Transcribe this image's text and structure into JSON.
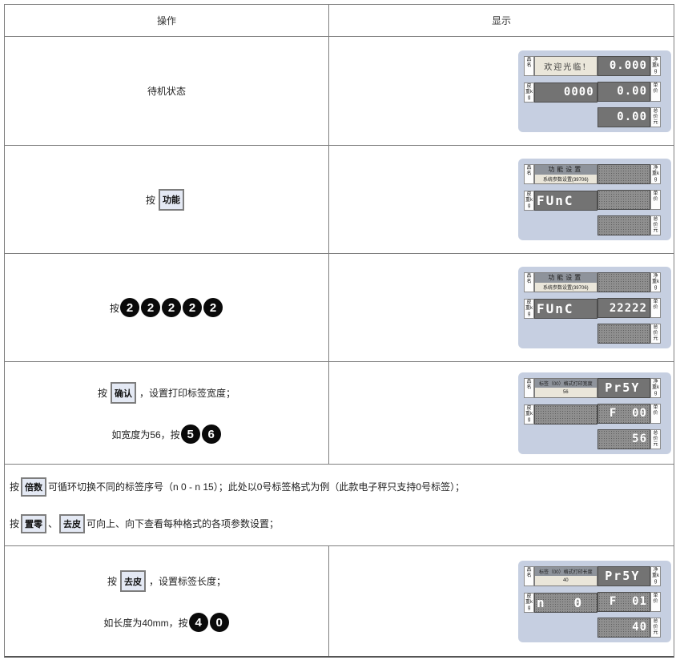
{
  "header": {
    "operation": "操作",
    "display": "显示"
  },
  "rows": {
    "standby": {
      "label": "待机状态"
    },
    "func": {
      "press": "按",
      "button": "功能"
    },
    "digits": {
      "press": "按",
      "keys": [
        "2",
        "2",
        "2",
        "2",
        "2"
      ]
    },
    "width": {
      "press": "按",
      "button": "确认",
      "line1_suffix": "，设置打印标签宽度；",
      "line2_prefix": "如宽度为56，按",
      "keys": [
        "5",
        "6"
      ]
    },
    "note": {
      "press1": "按",
      "btn_multiple": "倍数",
      "line1_text": "可循环切换不同的标签序号（n 0 - n 15）；此处以0号标签格式为例（此款电子秤只支持0号标签）；",
      "press2": "按",
      "btn_zero": "置零",
      "comma": "、",
      "btn_tare": "去皮",
      "line2_text": "可向上、向下查看每种格式的各项参数设置；"
    },
    "length": {
      "press": "按",
      "button": "去皮",
      "line1_suffix": "，设置标签长度；",
      "line2_prefix": "如长度为40mm，按",
      "keys": [
        "4",
        "0"
      ]
    }
  },
  "panel_labels": {
    "name": "品名",
    "tare": "皮重kg",
    "net": "净重kg",
    "price": "单价",
    "total": "总价元"
  },
  "panels": {
    "standby": {
      "lcd": "欢迎光临!",
      "left_led": "0000",
      "right": [
        "0.000",
        "0.00",
        "0.00"
      ]
    },
    "func": {
      "lcd1": "功能设置",
      "lcd2": "系统参数设置(39706)",
      "left_led": "FUnC",
      "right": [
        "",
        "",
        ""
      ]
    },
    "func2": {
      "lcd1": "功能设置",
      "lcd2": "系统参数设置(39706)",
      "left_led": "FUnC",
      "right": [
        "",
        "22222",
        ""
      ]
    },
    "width": {
      "lcd1": "标签（00）格式打印宽度",
      "lcd2": "56",
      "left_led": "",
      "right": [
        "Pr5Y",
        "F  00",
        "56"
      ]
    },
    "length": {
      "lcd1": "标签（00）格式打印长度",
      "lcd2": "40",
      "left_led": "n   0",
      "right": [
        "Pr5Y",
        "F  01",
        "40"
      ]
    }
  },
  "colors": {
    "panel_bg": "#c6cfe1",
    "led_bg": "#737373",
    "lcd_bg": "#eae6da",
    "border": "#7f7f7f"
  }
}
